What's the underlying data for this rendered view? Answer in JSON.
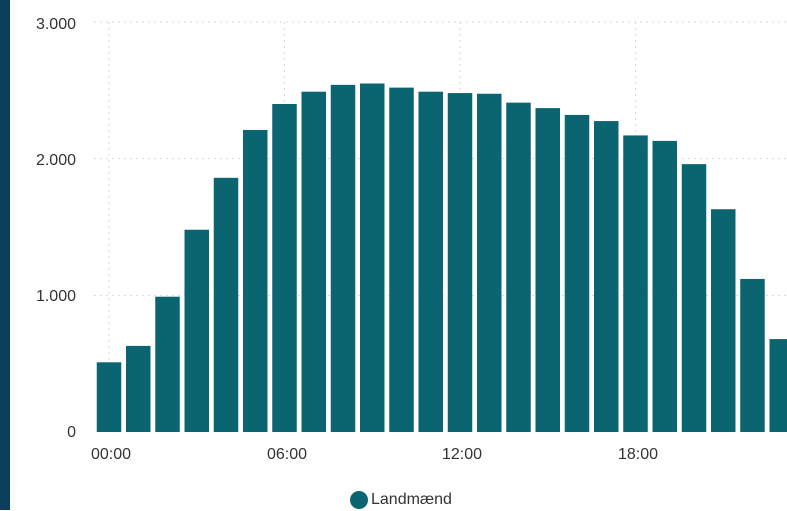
{
  "chart_data": {
    "type": "bar",
    "categories": [
      "00:00",
      "01:00",
      "02:00",
      "03:00",
      "04:00",
      "05:00",
      "06:00",
      "07:00",
      "08:00",
      "09:00",
      "10:00",
      "11:00",
      "12:00",
      "13:00",
      "14:00",
      "15:00",
      "16:00",
      "17:00",
      "18:00",
      "19:00",
      "20:00",
      "21:00",
      "22:00",
      "23:00"
    ],
    "series": [
      {
        "name": "Landmænd",
        "color": "#0b6570",
        "values": [
          510,
          630,
          990,
          1480,
          1860,
          2210,
          2400,
          2490,
          2540,
          2550,
          2520,
          2490,
          2480,
          2475,
          2410,
          2370,
          2320,
          2275,
          2170,
          2130,
          1960,
          1630,
          1120,
          680
        ]
      }
    ],
    "x_tick_labels": [
      "00:00",
      "06:00",
      "12:00",
      "18:00"
    ],
    "y_tick_labels": [
      "0",
      "1.000",
      "2.000",
      "3.000"
    ],
    "y_ticks": [
      0,
      1000,
      2000,
      3000
    ],
    "ylim": [
      0,
      3000
    ],
    "grid": true,
    "legend_position": "bottom-center"
  }
}
